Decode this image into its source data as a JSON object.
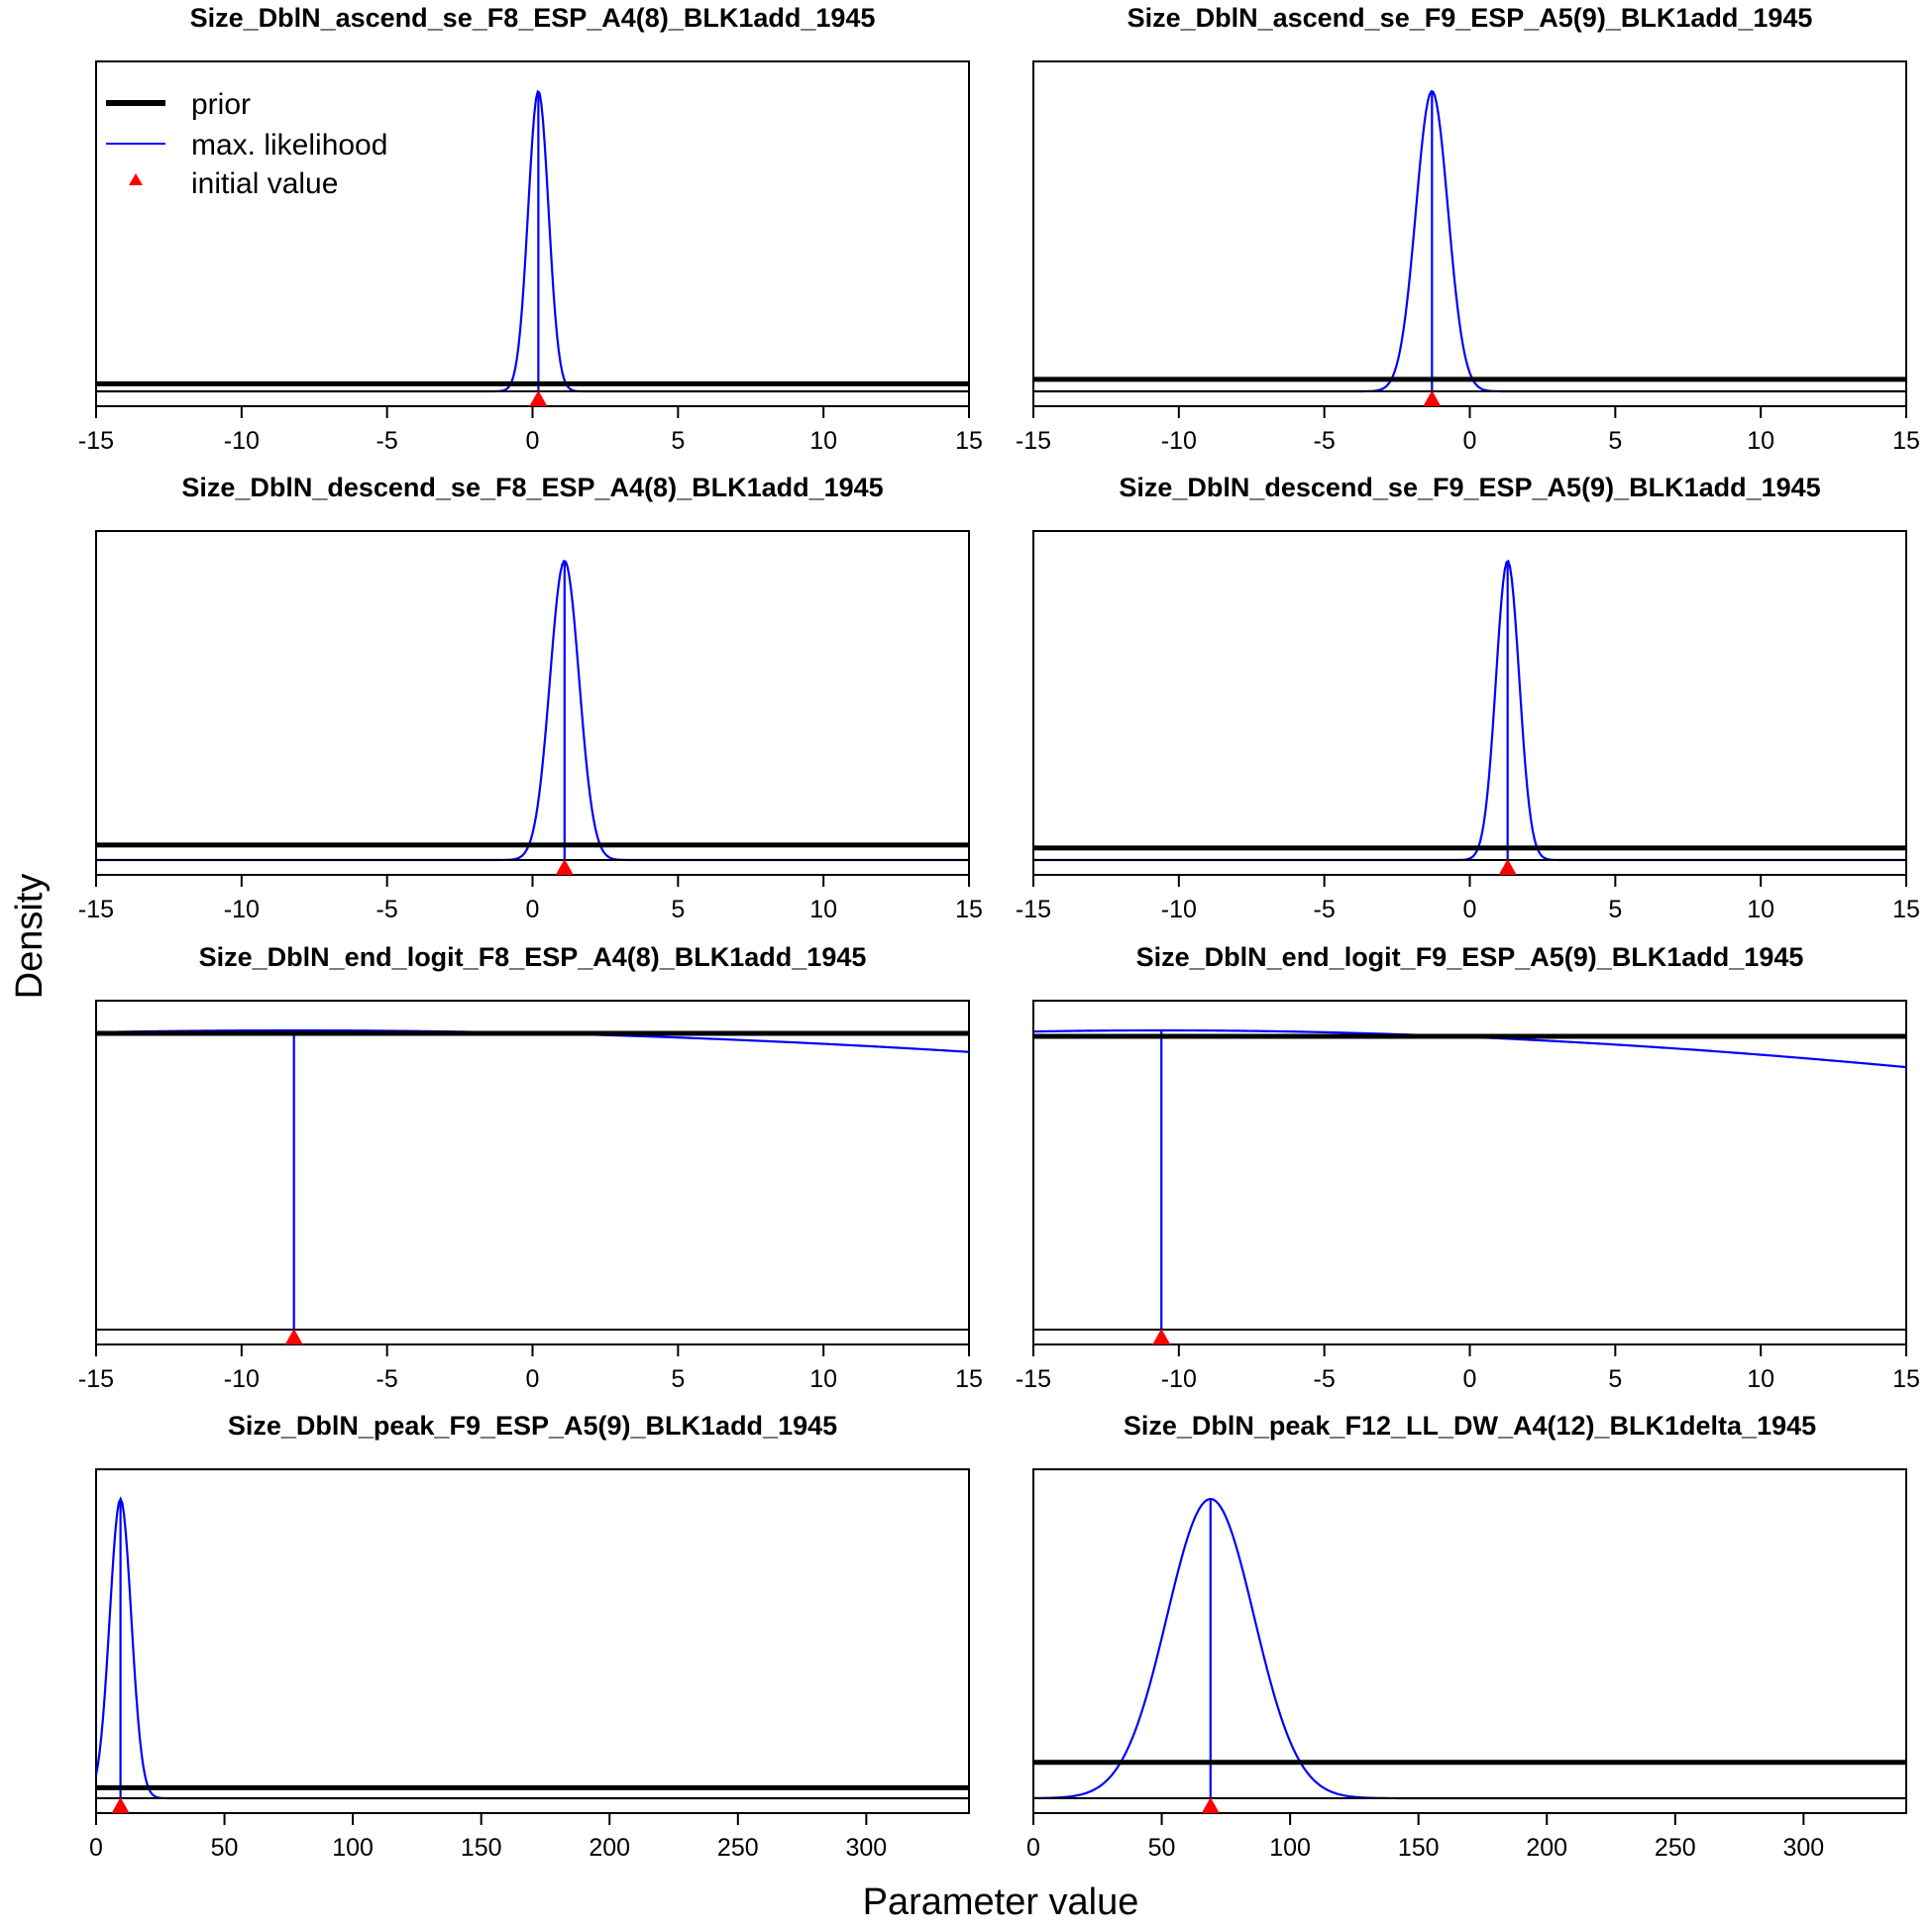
{
  "figure": {
    "ylabel": "Density",
    "xlabel": "Parameter value"
  },
  "legend": {
    "placement": "top-left of first panel",
    "entries": [
      {
        "label": "prior",
        "style": "thick-line",
        "color": "#000000"
      },
      {
        "label": "max. likelihood",
        "style": "thin-line",
        "color": "#0000ff"
      },
      {
        "label": "initial value",
        "style": "triangle",
        "color": "#ff0000"
      }
    ]
  },
  "colors": {
    "prior": "#000000",
    "mle": "#0000ff",
    "initial": "#ff0000"
  },
  "chart_data": [
    {
      "type": "line",
      "title": "Size_DblN_ascend_se_F8_ESP_A4(8)_BLK1add_1945",
      "xlim": [
        -15,
        15
      ],
      "xticks": [
        -15,
        -10,
        -5,
        0,
        5,
        10,
        15
      ],
      "xtick_labels": [
        "-15",
        "-10",
        "-5",
        "0",
        "5",
        "10",
        "15"
      ],
      "prior_density": 0.025,
      "mle": {
        "center": 0.2,
        "sd": 0.35
      },
      "mle_density_max": 1.0,
      "initial_value": 0.2
    },
    {
      "type": "line",
      "title": "Size_DblN_ascend_se_F9_ESP_A5(9)_BLK1add_1945",
      "xlim": [
        -15,
        15
      ],
      "xticks": [
        -15,
        -10,
        -5,
        0,
        5,
        10,
        15
      ],
      "xtick_labels": [
        "-15",
        "-10",
        "-5",
        "0",
        "5",
        "10",
        "15"
      ],
      "prior_density": 0.04,
      "mle": {
        "center": -1.3,
        "sd": 0.55
      },
      "mle_density_max": 1.0,
      "initial_value": -1.3
    },
    {
      "type": "line",
      "title": "Size_DblN_descend_se_F8_ESP_A4(8)_BLK1add_1945",
      "xlim": [
        -15,
        15
      ],
      "xticks": [
        -15,
        -10,
        -5,
        0,
        5,
        10,
        15
      ],
      "xtick_labels": [
        "-15",
        "-10",
        "-5",
        "0",
        "5",
        "10",
        "15"
      ],
      "prior_density": 0.05,
      "mle": {
        "center": 1.1,
        "sd": 0.5
      },
      "mle_density_max": 1.0,
      "initial_value": 1.1
    },
    {
      "type": "line",
      "title": "Size_DblN_descend_se_F9_ESP_A5(9)_BLK1add_1945",
      "xlim": [
        -15,
        15
      ],
      "xticks": [
        -15,
        -10,
        -5,
        0,
        5,
        10,
        15
      ],
      "xtick_labels": [
        "-15",
        "-10",
        "-5",
        "0",
        "5",
        "10",
        "15"
      ],
      "prior_density": 0.04,
      "mle": {
        "center": 1.3,
        "sd": 0.4
      },
      "mle_density_max": 1.0,
      "initial_value": 1.3
    },
    {
      "type": "line",
      "title": "Size_DblN_end_logit_F8_ESP_A4(8)_BLK1add_1945",
      "xlim": [
        -15,
        15
      ],
      "xticks": [
        -15,
        -10,
        -5,
        0,
        5,
        10,
        15
      ],
      "xtick_labels": [
        "-15",
        "-10",
        "-5",
        "0",
        "5",
        "10",
        "15"
      ],
      "prior_density": 0.99,
      "mle": {
        "center": -8.2,
        "sd": 60
      },
      "mle_density_max": 1.0,
      "initial_value": -8.2
    },
    {
      "type": "line",
      "title": "Size_DblN_end_logit_F9_ESP_A5(9)_BLK1add_1945",
      "xlim": [
        -15,
        15
      ],
      "xticks": [
        -15,
        -10,
        -5,
        0,
        5,
        10,
        15
      ],
      "xtick_labels": [
        "-15",
        "-10",
        "-5",
        "0",
        "5",
        "10",
        "15"
      ],
      "prior_density": 0.98,
      "mle": {
        "center": -10.6,
        "sd": 50
      },
      "mle_density_max": 1.0,
      "initial_value": -10.6
    },
    {
      "type": "line",
      "title": "Size_DblN_peak_F9_ESP_A5(9)_BLK1add_1945",
      "xlim": [
        0,
        340
      ],
      "xticks": [
        0,
        50,
        100,
        150,
        200,
        250,
        300
      ],
      "xtick_labels": [
        "0",
        "50",
        "100",
        "150",
        "200",
        "250",
        "300"
      ],
      "prior_density": 0.035,
      "mle": {
        "center": 9.5,
        "sd": 4.2
      },
      "mle_density_max": 1.0,
      "initial_value": 9.5
    },
    {
      "type": "line",
      "title": "Size_DblN_peak_F12_LL_DW_A4(12)_BLK1delta_1945",
      "xlim": [
        0,
        340
      ],
      "xticks": [
        0,
        50,
        100,
        150,
        200,
        250,
        300
      ],
      "xtick_labels": [
        "0",
        "50",
        "100",
        "150",
        "200",
        "250",
        "300"
      ],
      "prior_density": 0.12,
      "mle": {
        "center": 69,
        "sd": 17
      },
      "mle_density_max": 1.0,
      "initial_value": 69
    }
  ]
}
